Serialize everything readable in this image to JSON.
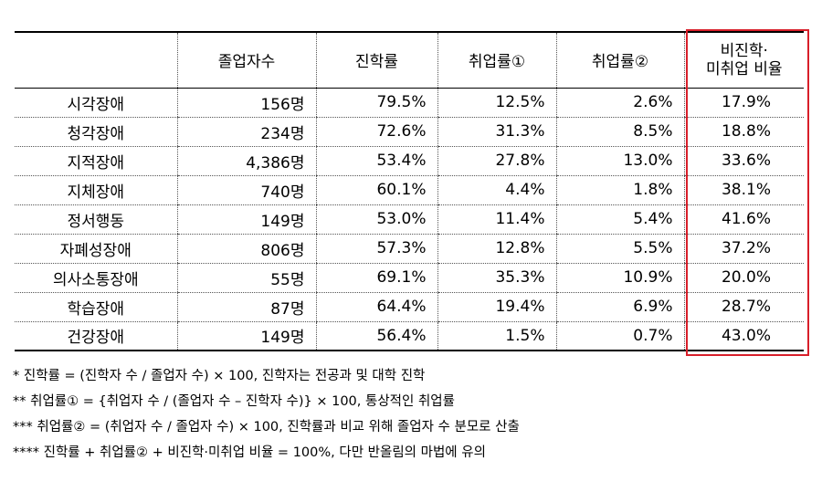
{
  "table": {
    "headers": [
      "",
      "졸업자수",
      "진학률",
      "취업률①",
      "취업률②",
      "비진학·",
      "미취업 비율"
    ],
    "rows": [
      {
        "label": "시각장애",
        "graduates": "156명",
        "advance": "79.5%",
        "emp1": "12.5%",
        "emp2": "2.6%",
        "nonrate": "17.9%"
      },
      {
        "label": "청각장애",
        "graduates": "234명",
        "advance": "72.6%",
        "emp1": "31.3%",
        "emp2": "8.5%",
        "nonrate": "18.8%"
      },
      {
        "label": "지적장애",
        "graduates": "4,386명",
        "advance": "53.4%",
        "emp1": "27.8%",
        "emp2": "13.0%",
        "nonrate": "33.6%"
      },
      {
        "label": "지체장애",
        "graduates": "740명",
        "advance": "60.1%",
        "emp1": "4.4%",
        "emp2": "1.8%",
        "nonrate": "38.1%"
      },
      {
        "label": "정서행동",
        "graduates": "149명",
        "advance": "53.0%",
        "emp1": "11.4%",
        "emp2": "5.4%",
        "nonrate": "41.6%"
      },
      {
        "label": "자폐성장애",
        "graduates": "806명",
        "advance": "57.3%",
        "emp1": "12.8%",
        "emp2": "5.5%",
        "nonrate": "37.2%"
      },
      {
        "label": "의사소통장애",
        "graduates": "55명",
        "advance": "69.1%",
        "emp1": "35.3%",
        "emp2": "10.9%",
        "nonrate": "20.0%"
      },
      {
        "label": "학습장애",
        "graduates": "87명",
        "advance": "64.4%",
        "emp1": "19.4%",
        "emp2": "6.9%",
        "nonrate": "28.7%"
      },
      {
        "label": "건강장애",
        "graduates": "149명",
        "advance": "56.4%",
        "emp1": "1.5%",
        "emp2": "0.7%",
        "nonrate": "43.0%"
      }
    ]
  },
  "highlight_color": "#d81f2a",
  "notes": [
    "* 진학률 = (진학자 수 / 졸업자 수) × 100, 진학자는 전공과 및 대학 진학",
    "** 취업률① = {취업자 수 / (졸업자 수 – 진학자 수)} × 100, 통상적인 취업률",
    "*** 취업률② = (취업자 수 / 졸업자 수) × 100, 진학률과 비교 위해 졸업자 수 분모로 산출",
    "**** 진학률 + 취업률② + 비진학·미취업 비율 = 100%, 다만 반올림의 마법에 유의"
  ]
}
